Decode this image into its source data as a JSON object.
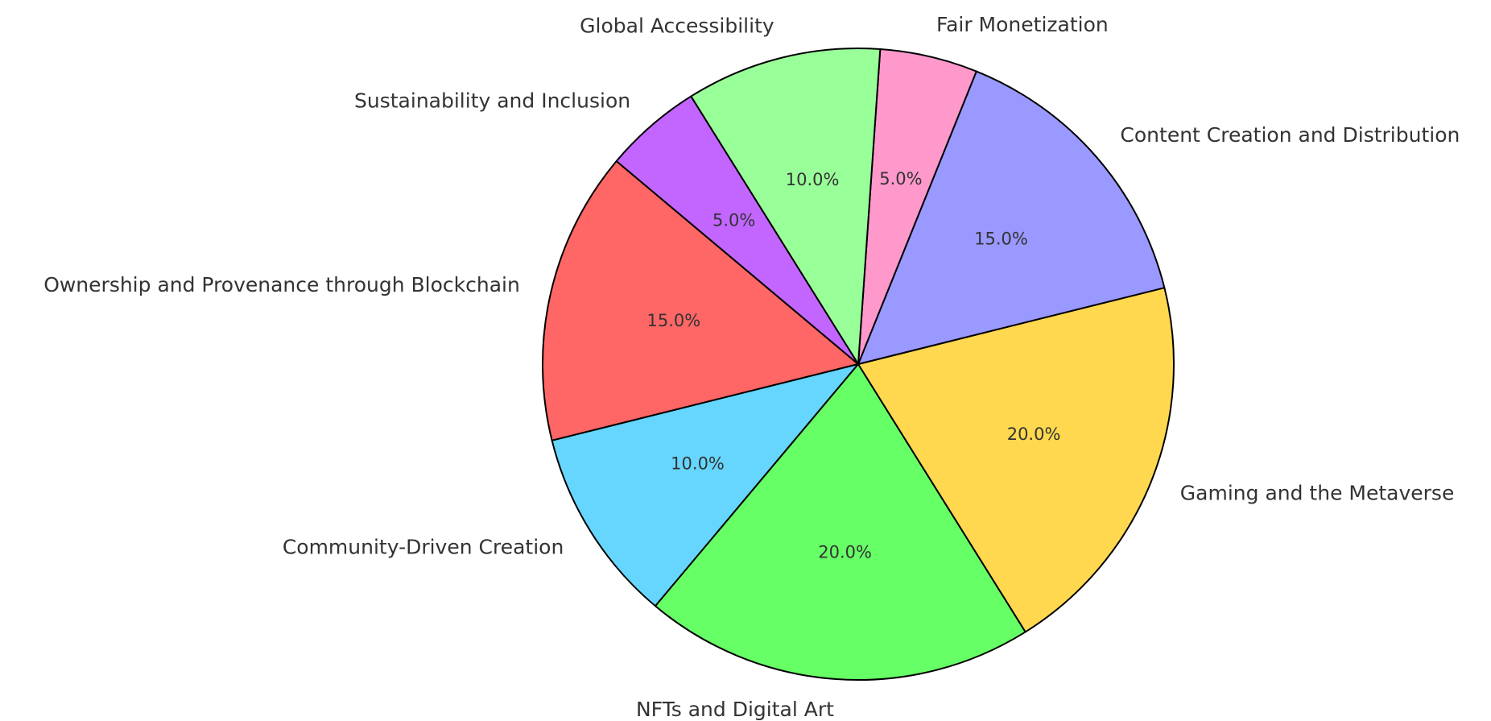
{
  "chart_data": {
    "type": "pie",
    "categories": [
      "Ownership and Provenance through Blockchain",
      "Community-Driven Creation",
      "NFTs and Digital Art",
      "Gaming and the Metaverse",
      "Content Creation and Distribution",
      "Fair Monetization",
      "Global Accessibility",
      "Sustainability and Inclusion"
    ],
    "values": [
      15,
      10,
      20,
      20,
      15,
      5,
      10,
      5
    ],
    "value_labels": [
      "15.0%",
      "10.0%",
      "20.0%",
      "20.0%",
      "15.0%",
      "5.0%",
      "10.0%",
      "5.0%"
    ],
    "colors": [
      "#ff6666",
      "#66d6ff",
      "#66ff66",
      "#ffd84f",
      "#9999ff",
      "#ff99cc",
      "#99ff99",
      "#c266ff"
    ]
  }
}
